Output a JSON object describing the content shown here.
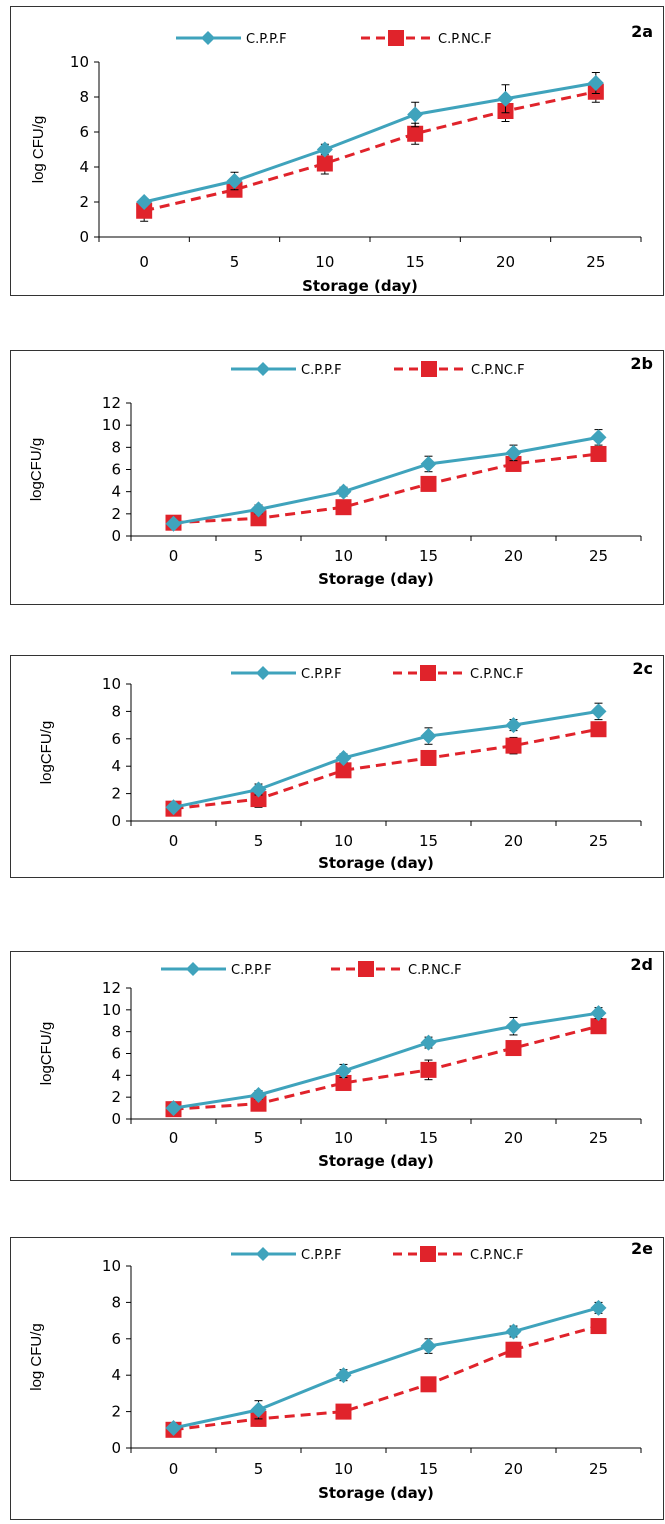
{
  "colors": {
    "series1": "#3fa3bc",
    "series2": "#e0232b",
    "axis": "#000000"
  },
  "chart_data": [
    {
      "type": "line",
      "panel_label": "2a",
      "ylabel": "log CFU/g",
      "xlabel": "Storage (day)",
      "x": [
        0,
        5,
        10,
        15,
        20,
        25
      ],
      "ylim": [
        0,
        10
      ],
      "yticks": [
        0,
        2,
        4,
        6,
        8,
        10
      ],
      "legend": "top",
      "series": [
        {
          "name": "C.P.P.F",
          "values": [
            2.0,
            3.2,
            5.0,
            7.0,
            7.9,
            8.8
          ],
          "errors": [
            0.2,
            0.5,
            0.3,
            0.7,
            0.8,
            0.6
          ]
        },
        {
          "name": "C.P.NC.F",
          "values": [
            1.5,
            2.7,
            4.2,
            5.9,
            7.2,
            8.3
          ],
          "errors": [
            0.6,
            0.4,
            0.6,
            0.6,
            0.6,
            0.6
          ]
        }
      ]
    },
    {
      "type": "line",
      "panel_label": "2b",
      "ylabel": "logCFU/g",
      "xlabel": "Storage (day)",
      "x": [
        0,
        5,
        10,
        15,
        20,
        25
      ],
      "ylim": [
        0,
        12
      ],
      "yticks": [
        0,
        2,
        4,
        6,
        8,
        10,
        12
      ],
      "legend": "top",
      "series": [
        {
          "name": "C.P.P.F",
          "values": [
            1.1,
            2.4,
            4.0,
            6.5,
            7.5,
            8.9
          ],
          "errors": [
            0.3,
            0.4,
            0.4,
            0.7,
            0.7,
            0.7
          ]
        },
        {
          "name": "C.P.NC.F",
          "values": [
            1.2,
            1.6,
            2.6,
            4.7,
            6.5,
            7.4
          ],
          "errors": [
            0.5,
            0.5,
            0.5,
            0.6,
            0.6,
            0.6
          ]
        }
      ]
    },
    {
      "type": "line",
      "panel_label": "2c",
      "ylabel": "logCFU/g",
      "xlabel": "Storage (day)",
      "x": [
        0,
        5,
        10,
        15,
        20,
        25
      ],
      "ylim": [
        0,
        10
      ],
      "yticks": [
        0,
        2,
        4,
        6,
        8,
        10
      ],
      "legend": "top",
      "series": [
        {
          "name": "C.P.P.F",
          "values": [
            1.0,
            2.3,
            4.6,
            6.2,
            7.0,
            8.0
          ],
          "errors": [
            0.2,
            0.4,
            0.3,
            0.6,
            0.4,
            0.6
          ]
        },
        {
          "name": "C.P.NC.F",
          "values": [
            0.9,
            1.6,
            3.7,
            4.6,
            5.5,
            6.7
          ],
          "errors": [
            0.2,
            0.6,
            0.5,
            0.5,
            0.6,
            0.3
          ]
        }
      ]
    },
    {
      "type": "line",
      "panel_label": "2d",
      "ylabel": "logCFU/g",
      "xlabel": "Storage (day)",
      "x": [
        0,
        5,
        10,
        15,
        20,
        25
      ],
      "ylim": [
        0,
        12
      ],
      "yticks": [
        0,
        2,
        4,
        6,
        8,
        10,
        12
      ],
      "legend": "top",
      "series": [
        {
          "name": "C.P.P.F",
          "values": [
            1.0,
            2.2,
            4.4,
            7.0,
            8.5,
            9.7
          ],
          "errors": [
            0.2,
            0.4,
            0.6,
            0.5,
            0.8,
            0.5
          ]
        },
        {
          "name": "C.P.NC.F",
          "values": [
            0.9,
            1.4,
            3.3,
            4.5,
            6.5,
            8.5
          ],
          "errors": [
            0.3,
            0.5,
            0.6,
            0.9,
            0.6,
            0.4
          ]
        }
      ]
    },
    {
      "type": "line",
      "panel_label": "2e",
      "ylabel": "log CFU/g",
      "xlabel": "Storage (day)",
      "x": [
        0,
        5,
        10,
        15,
        20,
        25
      ],
      "ylim": [
        0,
        10
      ],
      "yticks": [
        0,
        2,
        4,
        6,
        8,
        10
      ],
      "legend": "top",
      "series": [
        {
          "name": "C.P.P.F",
          "values": [
            1.1,
            2.1,
            4.0,
            5.6,
            6.4,
            7.7
          ],
          "errors": [
            0.2,
            0.5,
            0.3,
            0.4,
            0.3,
            0.3
          ]
        },
        {
          "name": "C.P.NC.F",
          "values": [
            1.0,
            1.6,
            2.0,
            3.5,
            5.4,
            6.7
          ],
          "errors": [
            0.2,
            0.4,
            0.2,
            0.3,
            0.4,
            0.3
          ]
        }
      ]
    }
  ]
}
